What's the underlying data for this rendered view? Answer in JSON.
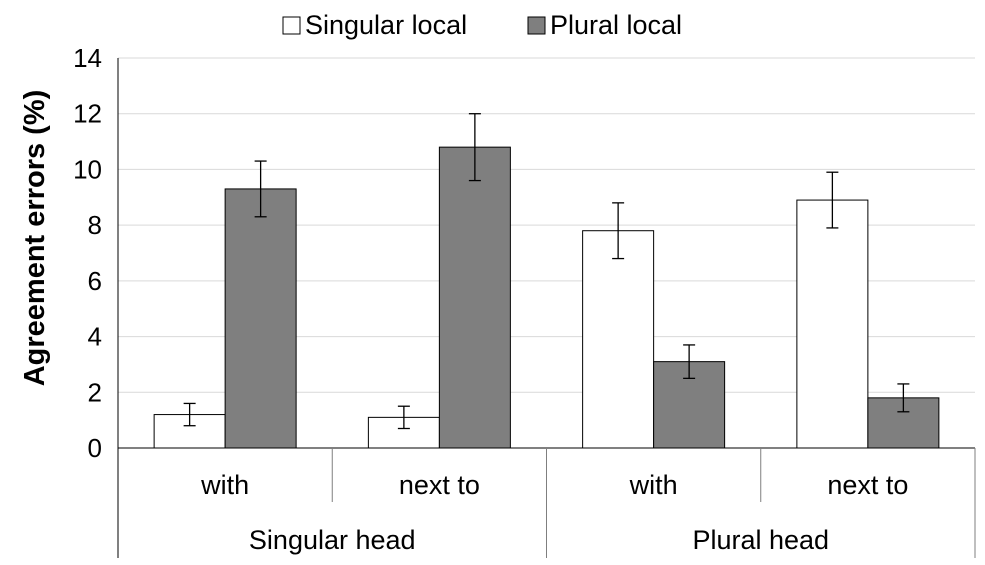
{
  "chart_data": {
    "type": "bar",
    "title": "",
    "xlabel": "",
    "ylabel": "Agreement errors (%)",
    "ylim": [
      0,
      14
    ],
    "yticks": [
      0,
      2,
      4,
      6,
      8,
      10,
      12,
      14
    ],
    "grid": true,
    "legend_position": "top-center",
    "groups": [
      {
        "label": "Singular head",
        "categories": [
          "with",
          "next to"
        ]
      },
      {
        "label": "Plural head",
        "categories": [
          "with",
          "next to"
        ]
      }
    ],
    "series": [
      {
        "name": "Singular local",
        "color": "#ffffff",
        "values": [
          1.2,
          1.1,
          7.8,
          8.9
        ],
        "errors": [
          0.4,
          0.4,
          1.0,
          1.0
        ]
      },
      {
        "name": "Plural local",
        "color": "#7f7f7f",
        "values": [
          9.3,
          10.8,
          3.1,
          1.8
        ],
        "errors": [
          1.0,
          1.2,
          0.6,
          0.5
        ]
      }
    ]
  }
}
